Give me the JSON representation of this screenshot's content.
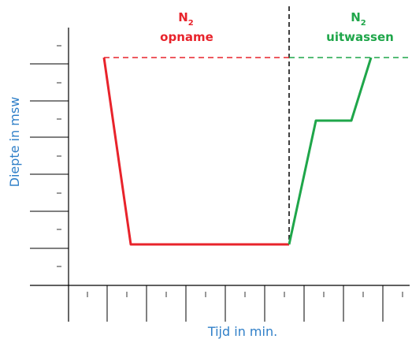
{
  "phase_left": {
    "symbol": "N",
    "subscript": "2",
    "label": "opname",
    "color": "#e8232b"
  },
  "phase_right": {
    "symbol": "N",
    "subscript": "2",
    "label": "uitwassen",
    "color": "#1fa64a"
  },
  "axis": {
    "y_label": "Diepte in msw",
    "x_label": "Tijd in min.",
    "label_color": "#2f7fc8"
  },
  "colors": {
    "uptake_line": "#e8232b",
    "washout_line": "#1fa64a",
    "divider": "#000000",
    "axis": "#000000"
  }
}
